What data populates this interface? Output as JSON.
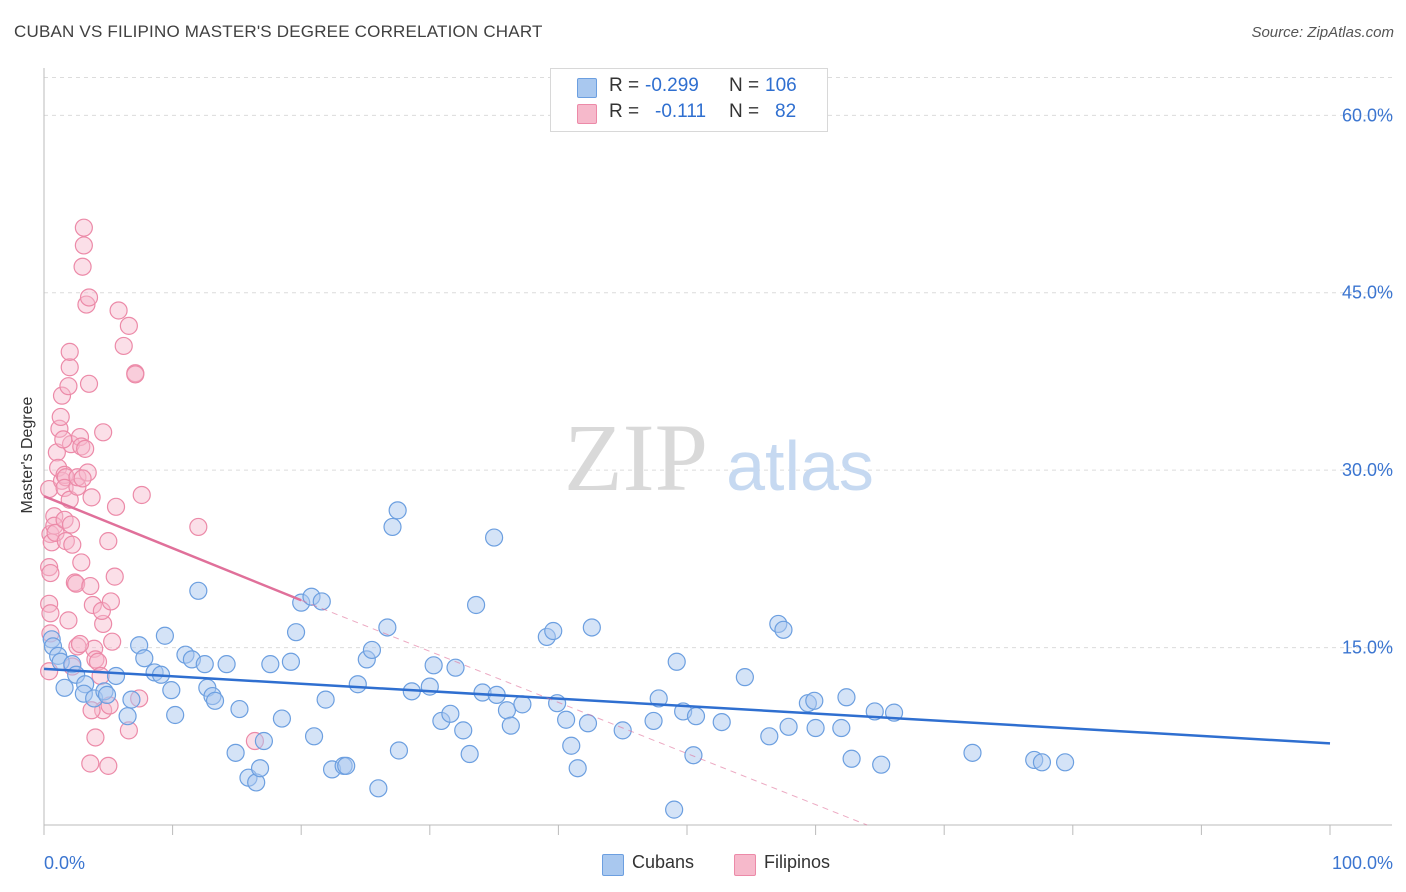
{
  "title": "CUBAN VS FILIPINO MASTER'S DEGREE CORRELATION CHART",
  "source": "Source: ZipAtlas.com",
  "watermark": {
    "zip": "ZIP",
    "atlas": "atlas"
  },
  "legend": {
    "rows": [
      {
        "r_label": "R =",
        "r_value": "-0.299",
        "n_label": "N =",
        "n_value": "106"
      },
      {
        "r_label": "R =",
        "r_value": "-0.111",
        "n_label": "N =",
        "n_value": "82"
      }
    ]
  },
  "bottom_legend": {
    "cubans": "Cubans",
    "filipinos": "Filipinos"
  },
  "colors": {
    "cuban_fill": "#a9c8ef",
    "cuban_stroke": "#6c9fe0",
    "cuban_line": "#2f6fd0",
    "filipino_fill": "#f6b9cb",
    "filipino_stroke": "#ec8aa8",
    "filipino_line": "#e0709a",
    "tick_text": "#3b75d0"
  },
  "chart_data": {
    "type": "scatter",
    "title": "CUBAN VS FILIPINO MASTER'S DEGREE CORRELATION CHART",
    "xlabel": "",
    "ylabel": "Master's Degree",
    "xlim": [
      0,
      100
    ],
    "ylim": [
      0,
      64
    ],
    "x_tick_labels": [
      "0.0%",
      "100.0%"
    ],
    "y_ticks": [
      15,
      30,
      45,
      60
    ],
    "y_tick_labels": [
      "15.0%",
      "30.0%",
      "45.0%",
      "60.0%"
    ],
    "grid": true,
    "legend_position": "top-center",
    "series": [
      {
        "name": "Cubans",
        "r": -0.299,
        "n": 106,
        "trend": {
          "x": [
            0,
            100
          ],
          "y": [
            13.2,
            6.9
          ]
        },
        "points": [
          [
            0.6,
            15.7
          ],
          [
            0.7,
            15.1
          ],
          [
            1.1,
            14.3
          ],
          [
            1.3,
            13.8
          ],
          [
            1.6,
            11.6
          ],
          [
            2.2,
            13.6
          ],
          [
            2.5,
            12.7
          ],
          [
            3.2,
            11.9
          ],
          [
            3.1,
            11.1
          ],
          [
            3.9,
            10.7
          ],
          [
            4.7,
            11.3
          ],
          [
            4.9,
            11.0
          ],
          [
            5.6,
            12.6
          ],
          [
            6.5,
            9.2
          ],
          [
            6.8,
            10.6
          ],
          [
            7.4,
            15.2
          ],
          [
            7.8,
            14.1
          ],
          [
            8.6,
            12.9
          ],
          [
            9.1,
            12.7
          ],
          [
            9.4,
            16.0
          ],
          [
            9.9,
            11.4
          ],
          [
            10.2,
            9.3
          ],
          [
            11.0,
            14.4
          ],
          [
            11.5,
            14.0
          ],
          [
            12.0,
            19.8
          ],
          [
            12.5,
            13.6
          ],
          [
            12.7,
            11.6
          ],
          [
            13.1,
            10.9
          ],
          [
            13.3,
            10.5
          ],
          [
            14.2,
            13.6
          ],
          [
            15.2,
            9.8
          ],
          [
            14.9,
            6.1
          ],
          [
            15.9,
            4.0
          ],
          [
            16.5,
            3.6
          ],
          [
            16.8,
            4.8
          ],
          [
            17.1,
            7.1
          ],
          [
            17.6,
            13.6
          ],
          [
            18.5,
            9.0
          ],
          [
            19.2,
            13.8
          ],
          [
            19.6,
            16.3
          ],
          [
            20.0,
            18.8
          ],
          [
            20.8,
            19.3
          ],
          [
            21.0,
            7.5
          ],
          [
            21.6,
            18.9
          ],
          [
            21.9,
            10.6
          ],
          [
            22.4,
            4.7
          ],
          [
            23.3,
            5.0
          ],
          [
            23.5,
            5.0
          ],
          [
            24.4,
            11.9
          ],
          [
            25.1,
            14.0
          ],
          [
            25.5,
            14.8
          ],
          [
            26.0,
            3.1
          ],
          [
            26.7,
            16.7
          ],
          [
            27.1,
            25.2
          ],
          [
            27.5,
            26.6
          ],
          [
            27.6,
            6.3
          ],
          [
            28.6,
            11.3
          ],
          [
            30.0,
            11.7
          ],
          [
            30.3,
            13.5
          ],
          [
            30.9,
            8.8
          ],
          [
            31.6,
            9.4
          ],
          [
            32.0,
            13.3
          ],
          [
            32.6,
            8.0
          ],
          [
            33.1,
            6.0
          ],
          [
            33.6,
            18.6
          ],
          [
            34.1,
            11.2
          ],
          [
            35.0,
            24.3
          ],
          [
            35.2,
            11.0
          ],
          [
            36.0,
            9.7
          ],
          [
            36.3,
            8.4
          ],
          [
            37.2,
            10.2
          ],
          [
            39.1,
            15.9
          ],
          [
            39.6,
            16.4
          ],
          [
            39.9,
            10.3
          ],
          [
            40.6,
            8.9
          ],
          [
            41.0,
            6.7
          ],
          [
            41.5,
            4.8
          ],
          [
            42.3,
            8.6
          ],
          [
            42.6,
            16.7
          ],
          [
            45.0,
            8.0
          ],
          [
            47.4,
            8.8
          ],
          [
            47.8,
            10.7
          ],
          [
            49.2,
            13.8
          ],
          [
            49.7,
            9.6
          ],
          [
            50.7,
            9.2
          ],
          [
            52.7,
            8.7
          ],
          [
            54.5,
            12.5
          ],
          [
            56.4,
            7.5
          ],
          [
            57.1,
            17.0
          ],
          [
            57.5,
            16.5
          ],
          [
            57.9,
            8.3
          ],
          [
            59.4,
            10.3
          ],
          [
            59.9,
            10.5
          ],
          [
            60.0,
            8.2
          ],
          [
            62.0,
            8.2
          ],
          [
            62.4,
            10.8
          ],
          [
            62.8,
            5.6
          ],
          [
            64.6,
            9.6
          ],
          [
            65.1,
            5.1
          ],
          [
            66.1,
            9.5
          ],
          [
            72.2,
            6.1
          ],
          [
            77.0,
            5.5
          ],
          [
            77.6,
            5.3
          ],
          [
            79.4,
            5.3
          ],
          [
            49.0,
            1.3
          ],
          [
            50.5,
            5.9
          ]
        ]
      },
      {
        "name": "Filipinos",
        "r": -0.111,
        "n": 82,
        "trend": {
          "x": [
            0,
            20
          ],
          "y": [
            27.8,
            19.0
          ]
        },
        "trend_extension": {
          "x": [
            20,
            64
          ],
          "y": [
            19.0,
            0
          ]
        },
        "points": [
          [
            0.4,
            28.4
          ],
          [
            0.5,
            24.6
          ],
          [
            0.6,
            23.9
          ],
          [
            0.4,
            21.8
          ],
          [
            0.5,
            21.3
          ],
          [
            0.4,
            18.7
          ],
          [
            0.5,
            17.9
          ],
          [
            0.5,
            16.2
          ],
          [
            0.4,
            13.0
          ],
          [
            0.8,
            26.1
          ],
          [
            0.8,
            25.3
          ],
          [
            0.9,
            24.7
          ],
          [
            1.0,
            31.5
          ],
          [
            1.1,
            30.2
          ],
          [
            1.2,
            33.5
          ],
          [
            1.3,
            34.5
          ],
          [
            1.4,
            36.3
          ],
          [
            1.4,
            29.1
          ],
          [
            1.6,
            29.6
          ],
          [
            1.7,
            29.4
          ],
          [
            1.6,
            28.5
          ],
          [
            1.6,
            25.8
          ],
          [
            1.7,
            24.0
          ],
          [
            1.9,
            37.1
          ],
          [
            2.0,
            38.7
          ],
          [
            2.0,
            40.0
          ],
          [
            2.1,
            32.2
          ],
          [
            2.0,
            27.5
          ],
          [
            2.1,
            25.4
          ],
          [
            2.2,
            23.7
          ],
          [
            1.9,
            17.3
          ],
          [
            2.4,
            20.5
          ],
          [
            2.5,
            20.4
          ],
          [
            2.6,
            28.6
          ],
          [
            2.6,
            29.4
          ],
          [
            2.6,
            15.1
          ],
          [
            2.8,
            32.8
          ],
          [
            2.9,
            32.0
          ],
          [
            2.9,
            22.2
          ],
          [
            3.1,
            50.5
          ],
          [
            3.1,
            49.0
          ],
          [
            3.0,
            47.2
          ],
          [
            3.3,
            44.0
          ],
          [
            3.5,
            44.6
          ],
          [
            3.4,
            29.8
          ],
          [
            3.5,
            37.3
          ],
          [
            3.2,
            31.8
          ],
          [
            3.7,
            27.7
          ],
          [
            3.6,
            20.2
          ],
          [
            3.8,
            18.6
          ],
          [
            3.9,
            14.9
          ],
          [
            4.0,
            14.0
          ],
          [
            4.2,
            13.8
          ],
          [
            4.6,
            33.2
          ],
          [
            4.6,
            17.0
          ],
          [
            4.5,
            18.1
          ],
          [
            4.6,
            9.7
          ],
          [
            5.0,
            24.0
          ],
          [
            5.1,
            10.1
          ],
          [
            5.2,
            18.9
          ],
          [
            5.3,
            15.5
          ],
          [
            5.6,
            26.9
          ],
          [
            5.5,
            21.0
          ],
          [
            5.8,
            43.5
          ],
          [
            6.2,
            40.5
          ],
          [
            6.6,
            42.2
          ],
          [
            7.1,
            38.2
          ],
          [
            7.1,
            38.1
          ],
          [
            7.6,
            27.9
          ],
          [
            7.4,
            10.7
          ],
          [
            6.6,
            8.0
          ],
          [
            3.6,
            5.2
          ],
          [
            4.0,
            7.4
          ],
          [
            5.0,
            5.0
          ],
          [
            3.7,
            9.7
          ],
          [
            12.0,
            25.2
          ],
          [
            16.4,
            7.1
          ],
          [
            2.2,
            13.4
          ],
          [
            2.8,
            15.3
          ],
          [
            4.4,
            12.6
          ],
          [
            3.0,
            29.3
          ],
          [
            1.5,
            32.6
          ]
        ]
      }
    ]
  }
}
